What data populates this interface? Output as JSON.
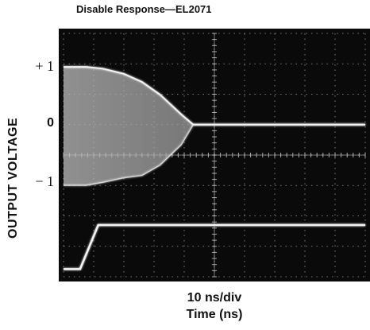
{
  "chart_data": {
    "type": "line",
    "title": "Disable Response—EL2071",
    "ylabel": "OUTPUT VOLTAGE",
    "xlabel_line1": "10 ns/div",
    "xlabel_line2": "Time (ns)",
    "y_ticks": [
      {
        "label": "+ 1",
        "value": 1,
        "class": ""
      },
      {
        "label": "0",
        "value": 0,
        "class": "zero"
      },
      {
        "label": "− 1",
        "value": -1,
        "class": ""
      }
    ],
    "x_divisions": 10,
    "y_divisions": 8,
    "grid": true,
    "background_color": "#0a0a0a",
    "trace_color": "#f4f4f4",
    "grid_color": "#d0d0d0",
    "output_trace": {
      "x_div": [
        0,
        0.75,
        1.3,
        2.0,
        2.6,
        3.2,
        3.9,
        4.3,
        10
      ],
      "upper_v": [
        1.0,
        1.0,
        0.97,
        0.88,
        0.74,
        0.52,
        0.18,
        0.0,
        0.0
      ],
      "lower_v": [
        -1.05,
        -1.05,
        -1.0,
        -0.92,
        -0.88,
        -0.7,
        -0.35,
        0.0,
        0.0
      ]
    },
    "disable_trace": {
      "x_div": [
        0,
        0.55,
        1.15,
        10
      ],
      "level_div": [
        0.25,
        0.25,
        1.7,
        1.7
      ]
    }
  }
}
